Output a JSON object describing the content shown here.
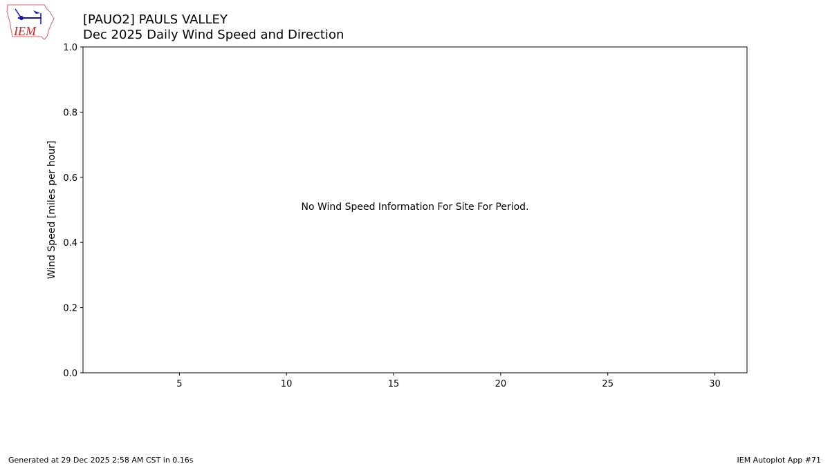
{
  "header": {
    "title_line1": "[PAUO2] PAULS VALLEY",
    "title_line2": "Dec 2025 Daily Wind Speed and Direction",
    "logo_text": "IEM"
  },
  "chart_data": {
    "type": "bar",
    "title": "[PAUO2] PAULS VALLEY\nDec 2025 Daily Wind Speed and Direction",
    "xlabel": "",
    "ylabel": "Wind Speed [miles per hour]",
    "xlim": [
      0.5,
      31.5
    ],
    "ylim": [
      0,
      1
    ],
    "xticks": [
      5,
      10,
      15,
      20,
      25,
      30
    ],
    "yticks": [
      0.0,
      0.2,
      0.4,
      0.6,
      0.8,
      1.0
    ],
    "ytick_labels": [
      "0.0",
      "0.2",
      "0.4",
      "0.6",
      "0.8",
      "1.0"
    ],
    "series": [],
    "annotation": "No Wind Speed Information For Site For Period.",
    "grid": false
  },
  "footer": {
    "generated": "Generated at 29 Dec 2025 2:58 AM CST in 0.16s",
    "app": "IEM Autoplot App #71"
  }
}
